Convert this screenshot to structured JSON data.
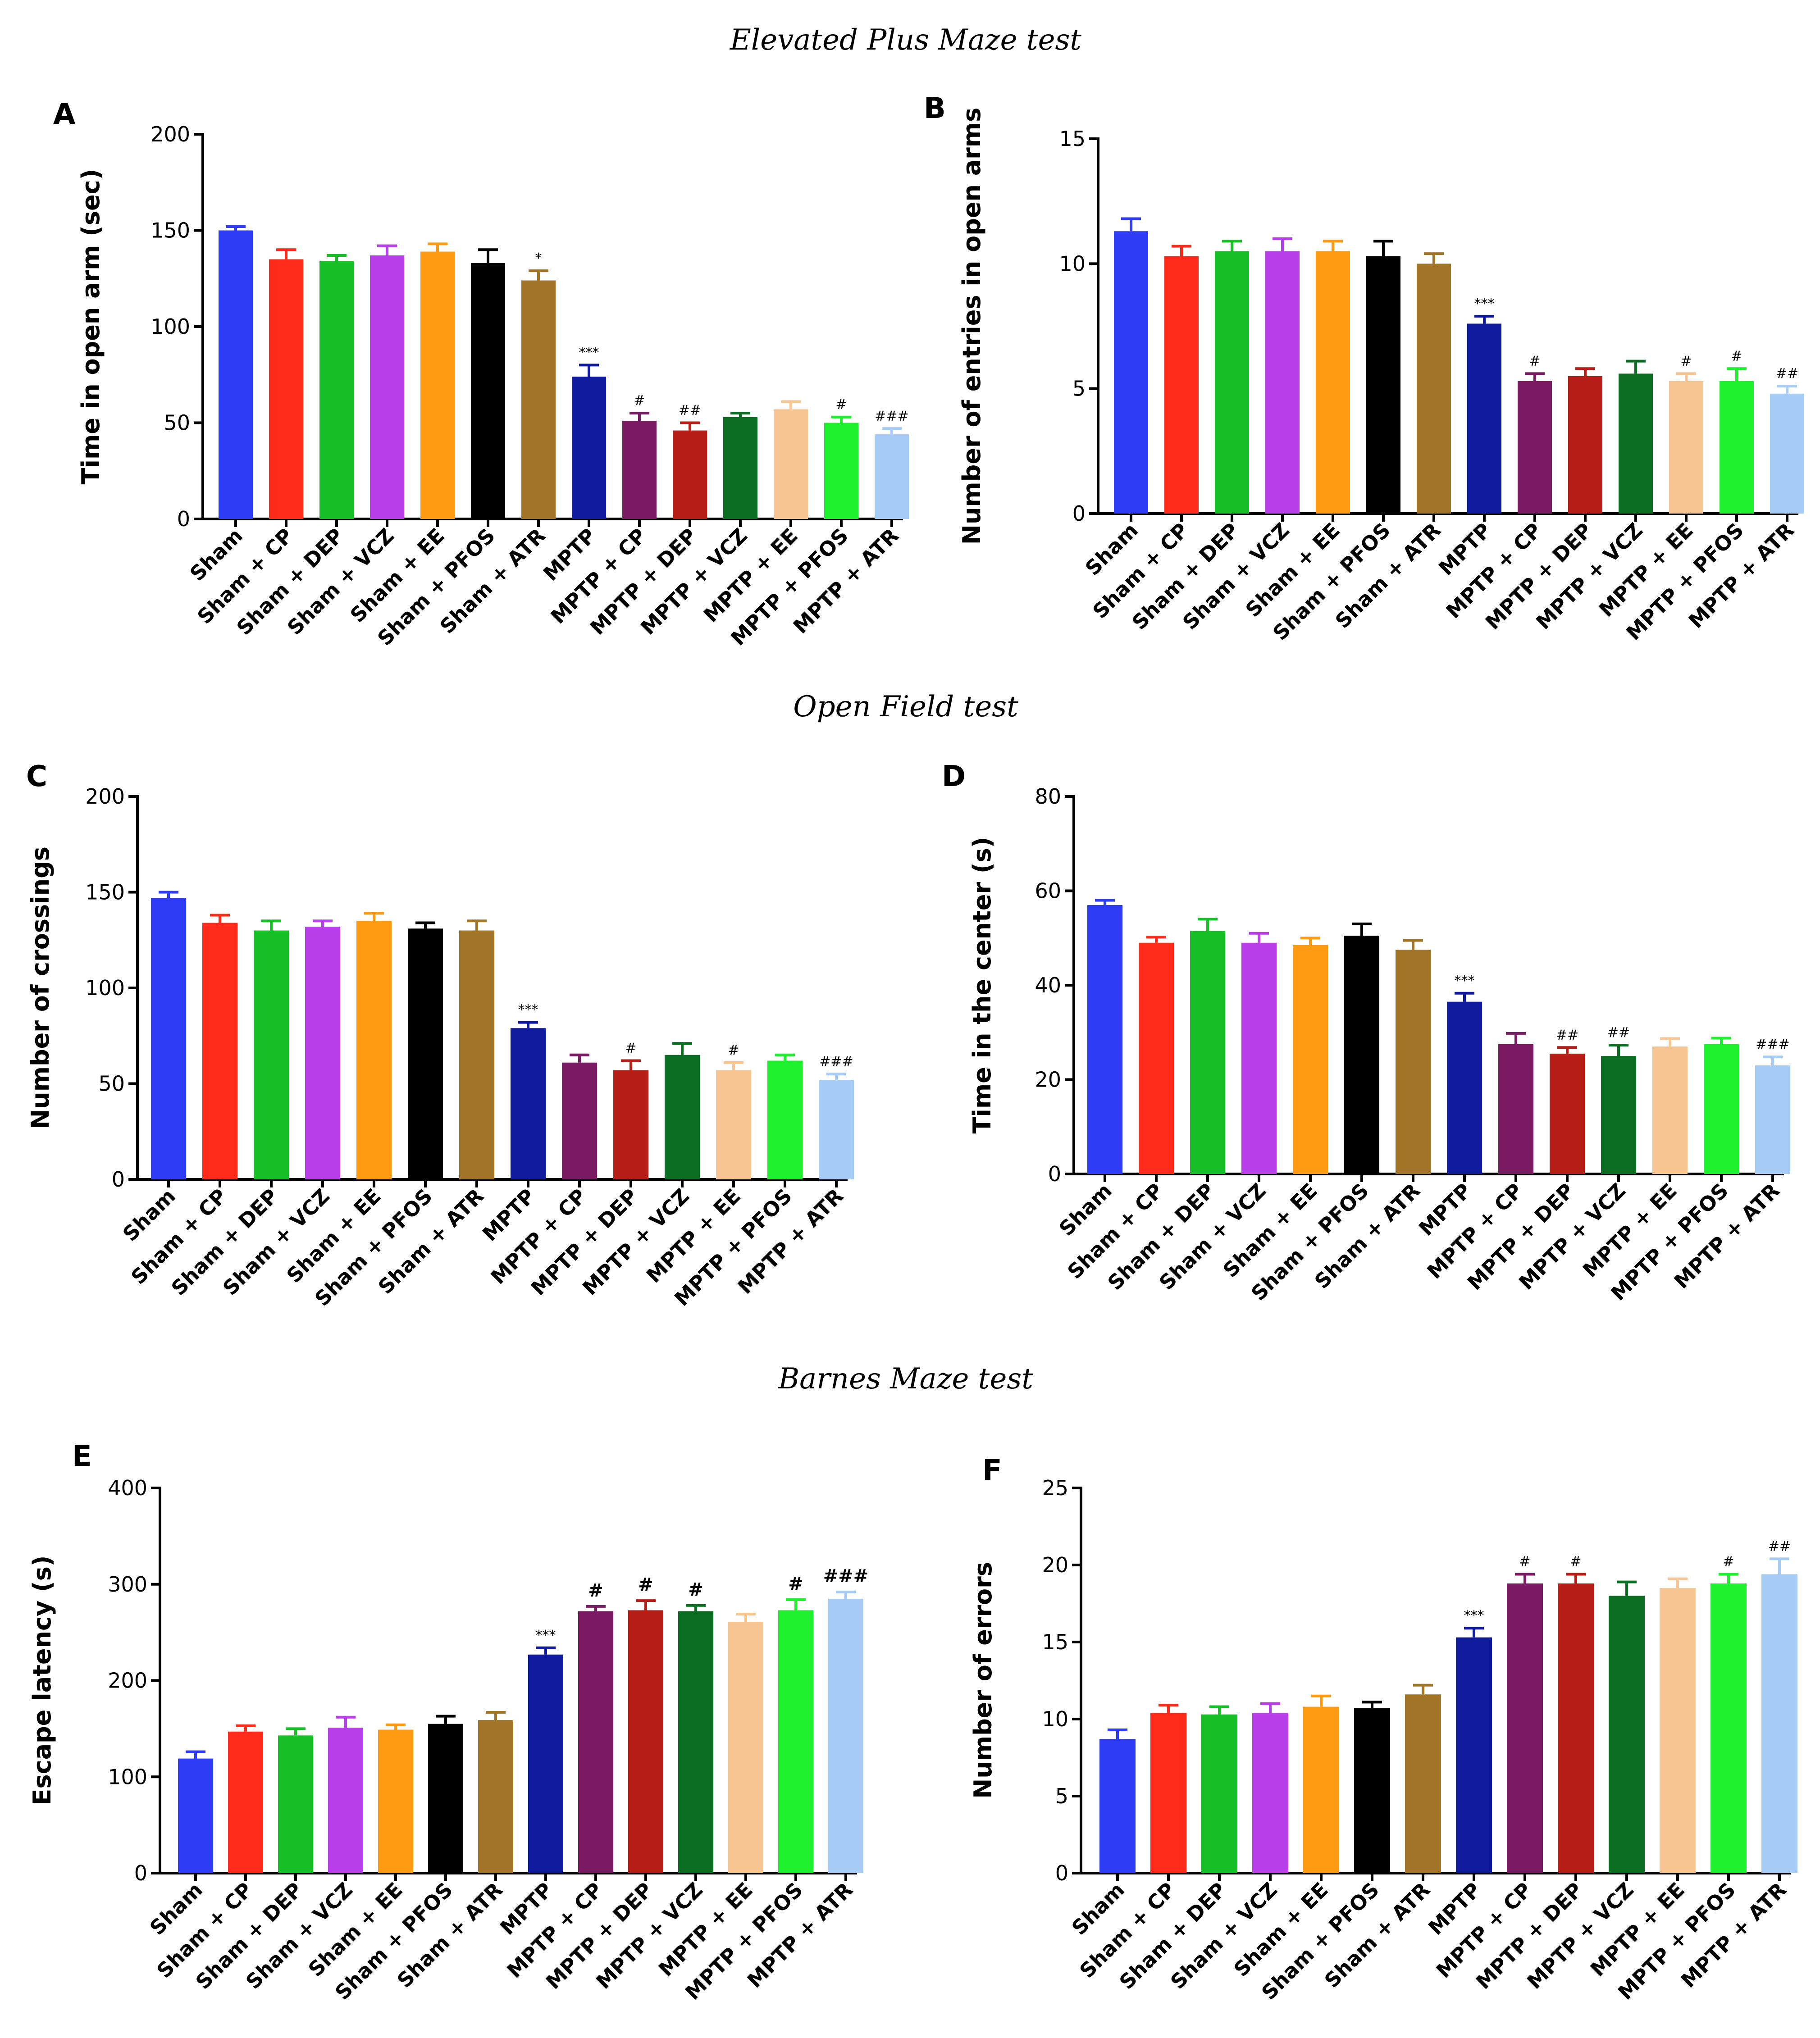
{
  "section_titles": {
    "epm": "Elevated Plus Maze test",
    "oft": "Open Field test",
    "bmt": "Barnes Maze test"
  },
  "categories": [
    "Sham",
    "Sham + CP",
    "Sham + DEP",
    "Sham + VCZ",
    "Sham + EE",
    "Sham + PFOS",
    "Sham + ATR",
    "MPTP",
    "MPTP + CP",
    "MPTP + DEP",
    "MPTP + VCZ",
    "MPTP + EE",
    "MPTP + PFOS",
    "MPTP + ATR"
  ],
  "colors": [
    "#2e3cf5",
    "#ff2a1a",
    "#17bf27",
    "#b73ee8",
    "#ff9a13",
    "#000000",
    "#a27428",
    "#101a9c",
    "#7b1b63",
    "#b61e17",
    "#0b6e23",
    "#f7c591",
    "#1ef02e",
    "#a6cbf5"
  ],
  "chart_data": [
    {
      "panel": "A",
      "type": "bar",
      "title": "",
      "xlabel": "",
      "ylabel": "Time in open arm (sec)",
      "ylim": [
        0,
        200
      ],
      "yticks": [
        0,
        50,
        100,
        150,
        200
      ],
      "values": [
        150,
        135,
        134,
        137,
        139,
        133,
        124,
        74,
        51,
        46,
        53,
        57,
        50,
        44
      ],
      "errors": [
        2,
        5,
        3,
        5,
        4,
        7,
        5,
        6,
        4,
        4,
        2,
        4,
        3,
        3
      ],
      "annotations": [
        "",
        "",
        "",
        "",
        "",
        "",
        "*",
        "***",
        "#",
        "##",
        "",
        "",
        "#",
        "###"
      ]
    },
    {
      "panel": "B",
      "type": "bar",
      "title": "",
      "xlabel": "",
      "ylabel": "Number of entries in open arms",
      "ylim": [
        0,
        15
      ],
      "yticks": [
        0,
        5,
        10,
        15
      ],
      "values": [
        11.3,
        10.3,
        10.5,
        10.5,
        10.5,
        10.3,
        10.0,
        7.6,
        5.3,
        5.5,
        5.6,
        5.3,
        5.3,
        4.8
      ],
      "errors": [
        0.5,
        0.4,
        0.4,
        0.5,
        0.4,
        0.6,
        0.4,
        0.3,
        0.3,
        0.3,
        0.5,
        0.3,
        0.5,
        0.3
      ],
      "annotations": [
        "",
        "",
        "",
        "",
        "",
        "",
        "",
        "***",
        "#",
        "",
        "",
        "#",
        "#",
        "##"
      ]
    },
    {
      "panel": "C",
      "type": "bar",
      "title": "",
      "xlabel": "",
      "ylabel": "Number of crossings",
      "ylim": [
        0,
        200
      ],
      "yticks": [
        0,
        50,
        100,
        150,
        200
      ],
      "values": [
        147,
        134,
        130,
        132,
        135,
        131,
        130,
        79,
        61,
        57,
        65,
        57,
        62,
        52
      ],
      "errors": [
        3,
        4,
        5,
        3,
        4,
        3,
        5,
        3,
        4,
        5,
        6,
        4,
        3,
        3
      ],
      "annotations": [
        "",
        "",
        "",
        "",
        "",
        "",
        "",
        "***",
        "",
        "#",
        "",
        "#",
        "",
        "###"
      ]
    },
    {
      "panel": "D",
      "type": "bar",
      "title": "",
      "xlabel": "",
      "ylabel": "Time in the center (s)",
      "ylim": [
        0,
        80
      ],
      "yticks": [
        0,
        20,
        40,
        60,
        80
      ],
      "values": [
        57,
        49,
        51.5,
        49,
        48.5,
        50.5,
        47.5,
        36.5,
        27.5,
        25.5,
        25,
        27,
        27.5,
        23
      ],
      "errors": [
        1,
        1.2,
        2.5,
        2,
        1.5,
        2.5,
        2,
        1.8,
        2.3,
        1.3,
        2.3,
        1.7,
        1.3,
        1.8
      ],
      "annotations": [
        "",
        "",
        "",
        "",
        "",
        "",
        "",
        "***",
        "",
        "##",
        "##",
        "",
        "",
        "###"
      ]
    },
    {
      "panel": "E",
      "type": "bar",
      "title": "",
      "xlabel": "",
      "ylabel": "Escape latency (s)",
      "ylim": [
        0,
        400
      ],
      "yticks": [
        0,
        100,
        200,
        300,
        400
      ],
      "values": [
        119,
        147,
        143,
        151,
        149,
        155,
        159,
        227,
        272,
        273,
        272,
        261,
        273,
        285
      ],
      "errors": [
        7,
        6,
        7,
        11,
        5,
        8,
        8,
        7,
        5,
        10,
        6,
        8,
        11,
        7
      ],
      "annotations": [
        "",
        "",
        "",
        "",
        "",
        "",
        "",
        "***",
        "#",
        "#",
        "#",
        "",
        "#",
        "###"
      ]
    },
    {
      "panel": "F",
      "type": "bar",
      "title": "",
      "xlabel": "",
      "ylabel": "Number of errors",
      "ylim": [
        0,
        25
      ],
      "yticks": [
        0,
        5,
        10,
        15,
        20,
        25
      ],
      "values": [
        8.7,
        10.4,
        10.3,
        10.4,
        10.8,
        10.7,
        11.6,
        15.3,
        18.8,
        18.8,
        18.0,
        18.5,
        18.8,
        19.4
      ],
      "errors": [
        0.6,
        0.5,
        0.5,
        0.6,
        0.7,
        0.4,
        0.6,
        0.6,
        0.6,
        0.6,
        0.9,
        0.6,
        0.6,
        1.0
      ],
      "annotations": [
        "",
        "",
        "",
        "",
        "",
        "",
        "",
        "***",
        "#",
        "#",
        "",
        "",
        "#",
        "##"
      ]
    }
  ]
}
